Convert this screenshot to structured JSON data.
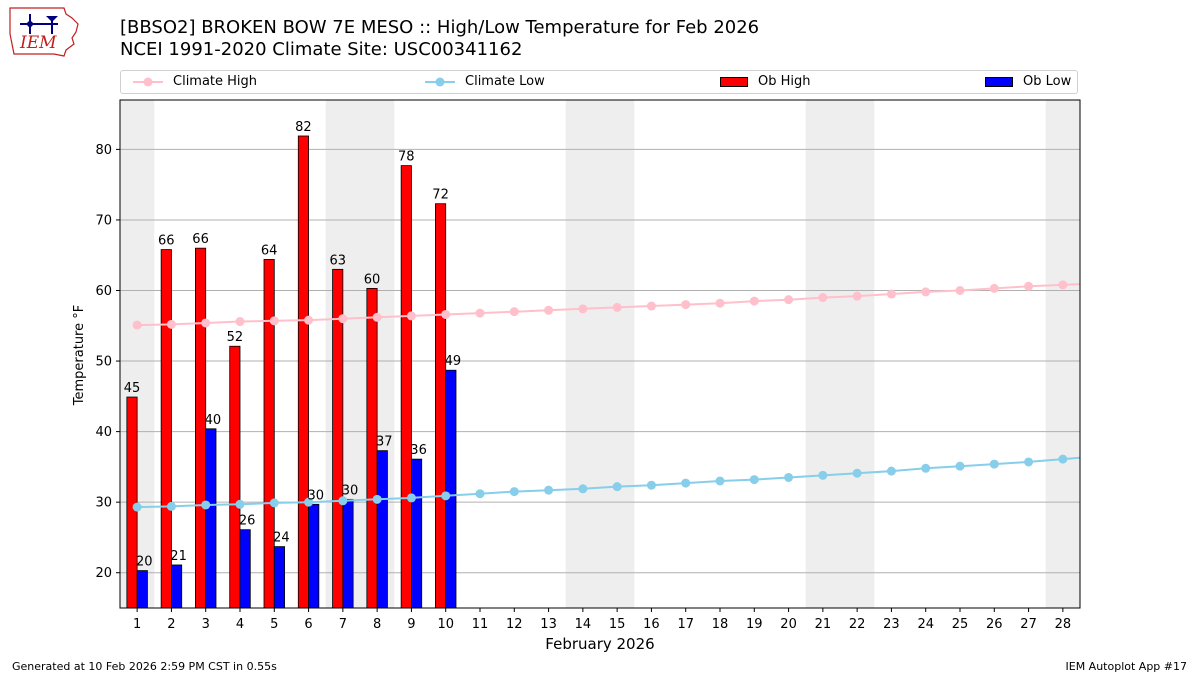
{
  "header": {
    "title_line1": "[BBSO2] BROKEN BOW 7E MESO :: High/Low Temperature for Feb 2026",
    "title_line2": "NCEI 1991-2020 Climate Site: USC00341162",
    "logo_text": "IEM"
  },
  "footer": {
    "generated": "Generated at 10 Feb 2026 2:59 PM CST in 0.55s",
    "app": "IEM Autoplot App #17"
  },
  "legend": {
    "placement": "top, above plot",
    "items": [
      {
        "label": "Climate High",
        "color": "#ffc0cb",
        "kind": "line-marker"
      },
      {
        "label": "Climate Low",
        "color": "#87ceeb",
        "kind": "line-marker"
      },
      {
        "label": "Ob High",
        "color": "#ff0000",
        "kind": "bar"
      },
      {
        "label": "Ob Low",
        "color": "#0000ff",
        "kind": "bar"
      }
    ]
  },
  "chart_data": {
    "type": "bar",
    "xlabel": "February 2026",
    "ylabel": "Temperature °F",
    "xlim": [
      0.5,
      28.5
    ],
    "ylim": [
      15,
      87
    ],
    "yticks": [
      20,
      30,
      40,
      50,
      60,
      70,
      80
    ],
    "grid": "horizontal",
    "weekend_shading_days": [
      1,
      7,
      8,
      14,
      15,
      21,
      22,
      28
    ],
    "shading_color": "#eeeeee",
    "days": [
      1,
      2,
      3,
      4,
      5,
      6,
      7,
      8,
      9,
      10,
      11,
      12,
      13,
      14,
      15,
      16,
      17,
      18,
      19,
      20,
      21,
      22,
      23,
      24,
      25,
      26,
      27,
      28
    ],
    "series": [
      {
        "name": "Ob High",
        "kind": "bar",
        "color": "#ff0000",
        "values": [
          44.9,
          65.8,
          66.0,
          52.1,
          64.4,
          81.9,
          63.0,
          60.3,
          77.7,
          72.3
        ],
        "labels": [
          "45",
          "66",
          "66",
          "52",
          "64",
          "82",
          "63",
          "60",
          "78",
          "72"
        ]
      },
      {
        "name": "Ob Low",
        "kind": "bar",
        "color": "#0000ff",
        "values": [
          20.3,
          21.1,
          40.4,
          26.1,
          23.7,
          29.7,
          30.4,
          37.3,
          36.1,
          48.7
        ],
        "labels": [
          "20",
          "21",
          "40",
          "26",
          "24",
          "30",
          "30",
          "37",
          "36",
          "49"
        ]
      },
      {
        "name": "Climate High",
        "kind": "line",
        "color": "#ffc0cb",
        "values": [
          55.1,
          55.2,
          55.4,
          55.6,
          55.7,
          55.8,
          56.0,
          56.2,
          56.4,
          56.6,
          56.8,
          57.0,
          57.2,
          57.4,
          57.6,
          57.8,
          58.0,
          58.2,
          58.5,
          58.7,
          59.0,
          59.2,
          59.5,
          59.8,
          60.0,
          60.3,
          60.6,
          60.8
        ]
      },
      {
        "name": "Climate Low",
        "kind": "line",
        "color": "#87ceeb",
        "values": [
          29.3,
          29.4,
          29.6,
          29.7,
          29.9,
          30.0,
          30.2,
          30.4,
          30.6,
          30.9,
          31.2,
          31.5,
          31.7,
          31.9,
          32.2,
          32.4,
          32.7,
          33.0,
          33.2,
          33.5,
          33.8,
          34.1,
          34.4,
          34.8,
          35.1,
          35.4,
          35.7,
          36.1
        ]
      }
    ]
  }
}
